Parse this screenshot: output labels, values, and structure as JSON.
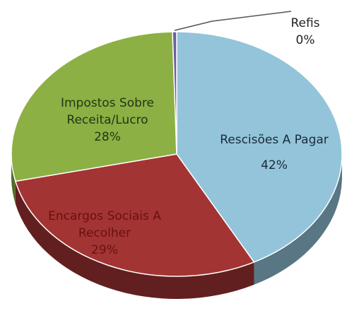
{
  "chart_data": {
    "type": "pie3d",
    "categories": [
      "Rescisões A Pagar",
      "Encargos Sociais A Recolher",
      "Impostos Sobre Receita/Lucro",
      "Refis"
    ],
    "values": [
      42,
      29,
      28,
      0.4
    ],
    "value_labels": [
      "42%",
      "29%",
      "28%",
      "0%"
    ],
    "colors": [
      "#93c4da",
      "#a33434",
      "#8cb044",
      "#6f5fa3"
    ]
  }
}
